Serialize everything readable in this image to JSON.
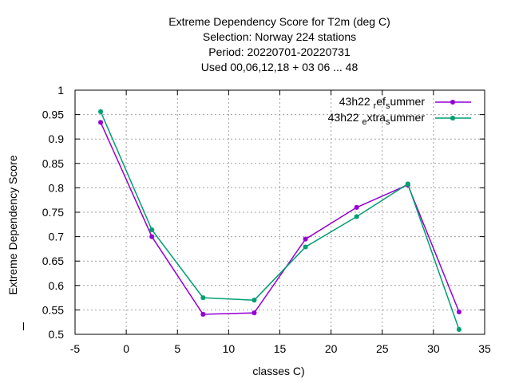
{
  "title_lines": [
    "Extreme Dependency Score  for T2m (deg C)",
    "Selection: Norway    224 stations",
    "Period: 20220701-20220731",
    "Used  00,06,12,18  + 03 06 ... 48"
  ],
  "chart_data": {
    "type": "line",
    "ylabel": "Extreme Dependency Score",
    "xlabel": "classes C)",
    "xlim": [
      -5,
      35
    ],
    "ylim": [
      0.5,
      1.0
    ],
    "xticks": [
      "-5",
      "0",
      "5",
      "10",
      "15",
      "20",
      "25",
      "30",
      "35"
    ],
    "yticks": [
      "0.5",
      "0.55",
      "0.6",
      "0.65",
      "0.7",
      "0.75",
      "0.8",
      "0.85",
      "0.9",
      "0.95",
      "1"
    ],
    "grid": true,
    "legend_position": "top-right",
    "x": [
      -2.5,
      2.5,
      7.5,
      12.5,
      17.5,
      22.5,
      27.5,
      32.5
    ],
    "series": [
      {
        "name": "43h22 ref summer",
        "name_parts": [
          "43h22 ",
          "r",
          "ef",
          "s",
          "ummer"
        ],
        "color": "#9400d3",
        "values": [
          0.934,
          0.7,
          0.541,
          0.544,
          0.695,
          0.76,
          0.806,
          0.546
        ]
      },
      {
        "name": "43h22 extra summer",
        "name_parts": [
          "43h22 ",
          "e",
          "xtra",
          "s",
          "ummer"
        ],
        "color": "#009e73",
        "values": [
          0.956,
          0.714,
          0.575,
          0.57,
          0.679,
          0.741,
          0.808,
          0.51
        ]
      }
    ]
  }
}
